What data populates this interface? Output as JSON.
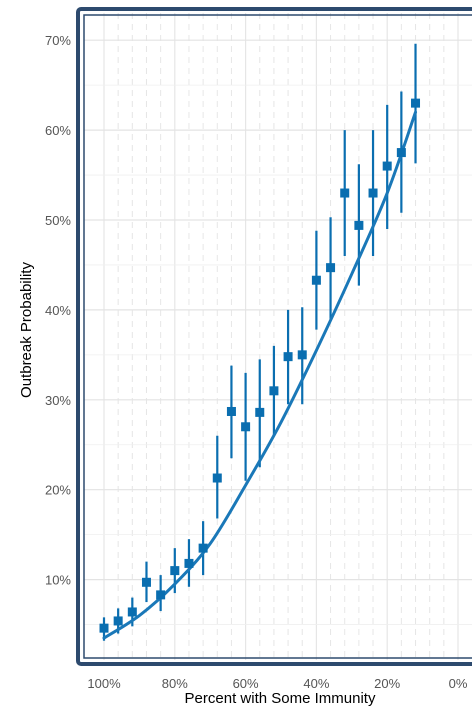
{
  "chart_data": {
    "type": "scatter",
    "title": "",
    "xlabel": "Percent with Some Immunity",
    "ylabel": "Outbreak Probability",
    "x_reversed": true,
    "xlim": [
      0,
      100
    ],
    "ylim": [
      0,
      70
    ],
    "x_ticks": [
      100,
      80,
      60,
      40,
      20,
      0
    ],
    "x_tick_labels": [
      "100%",
      "80%",
      "60%",
      "40%",
      "20%",
      "0%"
    ],
    "y_ticks": [
      10,
      20,
      30,
      40,
      50,
      60,
      70
    ],
    "y_tick_labels": [
      "10%",
      "20%",
      "30%",
      "40%",
      "50%",
      "60%",
      "70%"
    ],
    "grid": true,
    "colors": {
      "points": "#0a6eb0",
      "fit": "#1a78b8",
      "frame": "#2d4a6e",
      "grid": "#e6e6e6"
    },
    "series": [
      {
        "type": "points_with_error_bars",
        "points": [
          {
            "x": 100,
            "y": 4.6,
            "lo": 3.2,
            "hi": 5.8
          },
          {
            "x": 96,
            "y": 5.4,
            "lo": 4.0,
            "hi": 6.8
          },
          {
            "x": 92,
            "y": 6.4,
            "lo": 4.8,
            "hi": 8.0
          },
          {
            "x": 88,
            "y": 9.7,
            "lo": 7.5,
            "hi": 12.0
          },
          {
            "x": 84,
            "y": 8.3,
            "lo": 6.5,
            "hi": 10.5
          },
          {
            "x": 80,
            "y": 11.0,
            "lo": 8.5,
            "hi": 13.5
          },
          {
            "x": 76,
            "y": 11.8,
            "lo": 9.2,
            "hi": 14.5
          },
          {
            "x": 72,
            "y": 13.5,
            "lo": 10.5,
            "hi": 16.5
          },
          {
            "x": 68,
            "y": 21.3,
            "lo": 16.8,
            "hi": 26.0
          },
          {
            "x": 64,
            "y": 28.7,
            "lo": 23.5,
            "hi": 33.8
          },
          {
            "x": 60,
            "y": 27.0,
            "lo": 21.0,
            "hi": 33.0
          },
          {
            "x": 56,
            "y": 28.6,
            "lo": 22.5,
            "hi": 34.5
          },
          {
            "x": 52,
            "y": 31.0,
            "lo": 26.0,
            "hi": 36.0
          },
          {
            "x": 48,
            "y": 34.8,
            "lo": 29.5,
            "hi": 40.0
          },
          {
            "x": 44,
            "y": 35.0,
            "lo": 29.5,
            "hi": 40.3
          },
          {
            "x": 40,
            "y": 43.3,
            "lo": 37.8,
            "hi": 48.8
          },
          {
            "x": 36,
            "y": 44.7,
            "lo": 39.0,
            "hi": 50.3
          },
          {
            "x": 32,
            "y": 53.0,
            "lo": 46.0,
            "hi": 60.0
          },
          {
            "x": 28,
            "y": 49.4,
            "lo": 42.7,
            "hi": 56.2
          },
          {
            "x": 24,
            "y": 53.0,
            "lo": 46.0,
            "hi": 60.0
          },
          {
            "x": 20,
            "y": 56.0,
            "lo": 49.0,
            "hi": 62.8
          },
          {
            "x": 16,
            "y": 57.5,
            "lo": 50.8,
            "hi": 64.3
          },
          {
            "x": 12,
            "y": 63.0,
            "lo": 56.3,
            "hi": 69.6
          }
        ]
      },
      {
        "type": "fitted_curve",
        "points": [
          {
            "x": 100,
            "y": 3.5
          },
          {
            "x": 90,
            "y": 6.0
          },
          {
            "x": 80,
            "y": 9.5
          },
          {
            "x": 70,
            "y": 14.0
          },
          {
            "x": 60,
            "y": 20.5
          },
          {
            "x": 50,
            "y": 27.5
          },
          {
            "x": 40,
            "y": 35.5
          },
          {
            "x": 30,
            "y": 44.0
          },
          {
            "x": 20,
            "y": 53.0
          },
          {
            "x": 12,
            "y": 62.0
          }
        ]
      }
    ]
  }
}
